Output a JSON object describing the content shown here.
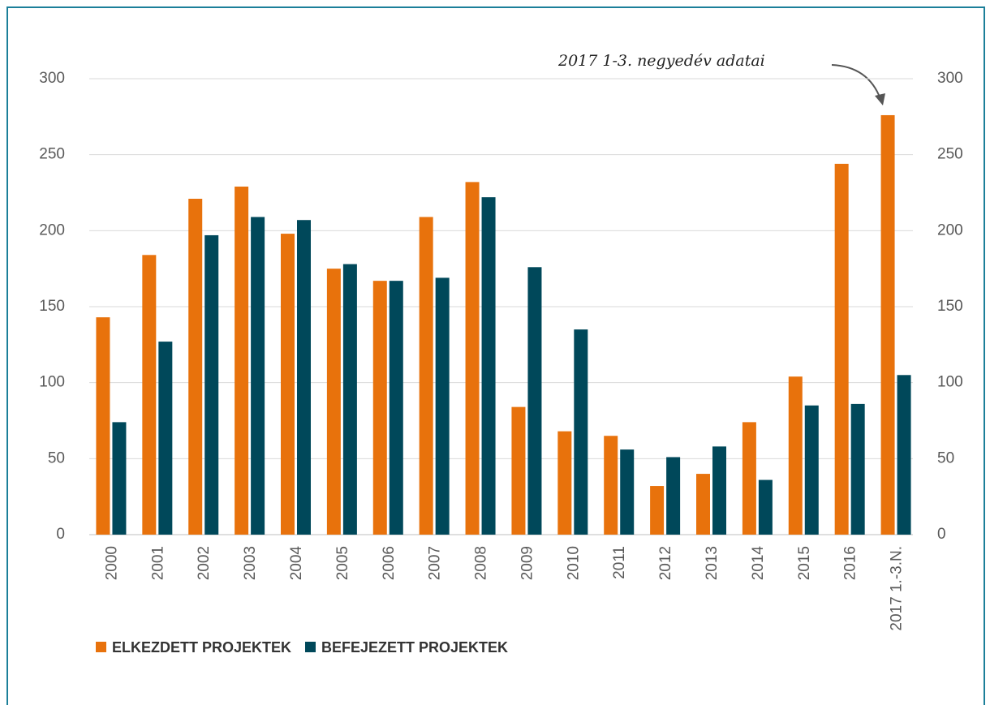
{
  "chart_data": {
    "type": "bar",
    "annotation": "2017 1-3. negyedév adatai",
    "categories": [
      "2000",
      "2001",
      "2002",
      "2003",
      "2004",
      "2005",
      "2006",
      "2007",
      "2008",
      "2009",
      "2010",
      "2011",
      "2012",
      "2013",
      "2014",
      "2015",
      "2016",
      "2017 1.-3.N."
    ],
    "series": [
      {
        "name": "ELKEZDETT PROJEKTEK",
        "color": "#e8720c",
        "values": [
          143,
          184,
          221,
          229,
          198,
          175,
          167,
          209,
          232,
          84,
          68,
          65,
          32,
          40,
          74,
          104,
          244,
          276
        ]
      },
      {
        "name": "BEFEJEZETT PROJEKTEK",
        "color": "#00485a",
        "values": [
          74,
          127,
          197,
          209,
          207,
          178,
          167,
          169,
          222,
          176,
          135,
          56,
          51,
          58,
          36,
          85,
          86,
          105
        ]
      }
    ],
    "ylim": [
      0,
      300
    ],
    "yticks": [
      0,
      50,
      100,
      150,
      200,
      250,
      300
    ],
    "y2lim": [
      0,
      300
    ],
    "y2ticks": [
      0,
      50,
      100,
      150,
      200,
      250,
      300
    ],
    "grid": true
  }
}
